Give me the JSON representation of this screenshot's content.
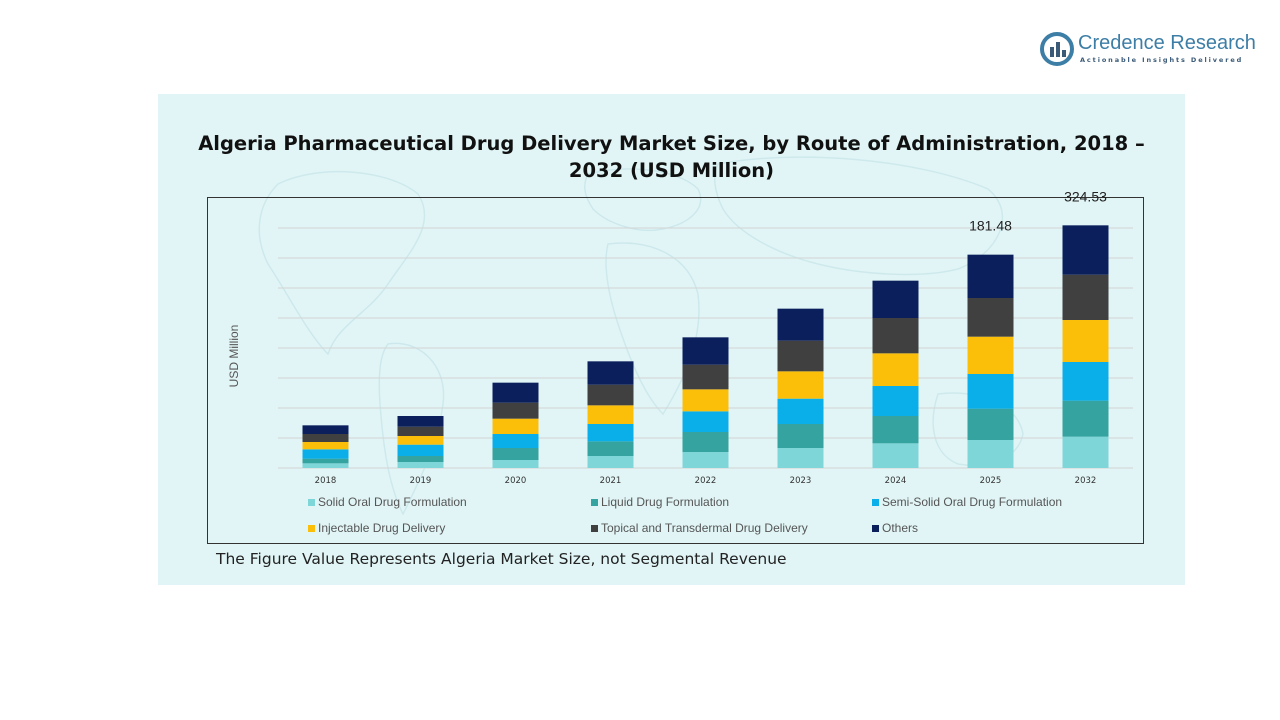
{
  "brand": {
    "name": "Credence Research",
    "tagline": "Actionable Insights Delivered",
    "color": "#3d7ea6"
  },
  "footnote": "The Figure Value Represents Algeria Market Size, not Segmental Revenue",
  "chart_data": {
    "type": "bar",
    "stacked": true,
    "title": "Algeria Pharmaceutical Drug Delivery Market Size, by Route of Administration, 2018 – 2032 (USD Million)",
    "ylabel": "USD Million",
    "xlabel": "",
    "categories": [
      "2018",
      "2019",
      "2020",
      "2021",
      "2022",
      "2023",
      "2024",
      "2025",
      "2032"
    ],
    "ylim": [
      0,
      360
    ],
    "grid": true,
    "legend": "bottom",
    "series": [
      {
        "name": "Solid Oral Drug Formulation",
        "color": "#7fd6d8",
        "values": [
          7,
          9,
          12,
          18,
          24,
          30,
          37,
          42,
          47
        ]
      },
      {
        "name": "Liquid Drug Formulation",
        "color": "#35a3a0",
        "values": [
          7,
          9,
          18,
          22,
          30,
          36,
          41,
          47,
          54
        ]
      },
      {
        "name": "Semi-Solid Oral Drug Formulation",
        "color": "#0aaee8",
        "values": [
          14,
          17,
          21,
          26,
          31,
          38,
          45,
          52,
          58
        ]
      },
      {
        "name": "Injectable Drug Delivery",
        "color": "#fbbf0a",
        "values": [
          11,
          13,
          23,
          28,
          33,
          41,
          49,
          56,
          63
        ]
      },
      {
        "name": "Topical and Transdermal Drug Delivery",
        "color": "#404040",
        "values": [
          12,
          14,
          24,
          31,
          37,
          46,
          53,
          58,
          68
        ]
      },
      {
        "name": "Others",
        "color": "#0a1f5c",
        "values": [
          13,
          16,
          30,
          35,
          41,
          48,
          56,
          65,
          74
        ]
      }
    ],
    "data_labels": {
      "2025": "181.48",
      "2032": "324.53"
    }
  }
}
